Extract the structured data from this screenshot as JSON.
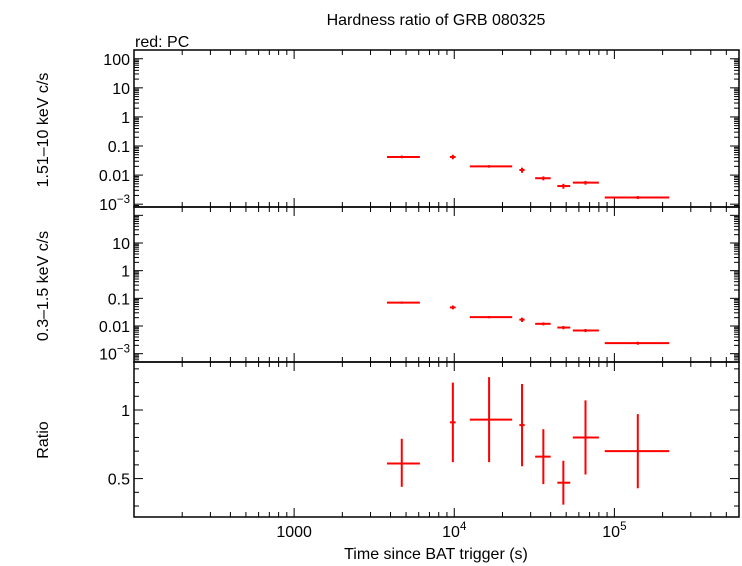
{
  "chart_data": {
    "type": "scatter",
    "title": "Hardness ratio of GRB 080325",
    "subtitle": "red: PC",
    "xlabel": "Time since BAT trigger (s)",
    "xscale": "log",
    "xlim": [
      100,
      600000
    ],
    "x_tick_labels": [
      {
        "value": 1000,
        "base": "1000",
        "exp": ""
      },
      {
        "value": 10000,
        "base": "10",
        "exp": "4"
      },
      {
        "value": 100000,
        "base": "10",
        "exp": "5"
      }
    ],
    "color": "#ff0000",
    "panels": [
      {
        "name": "hard",
        "ylabel": "1.51–10 keV c/s",
        "yscale": "log",
        "ylim": [
          0.0008,
          200
        ],
        "y_tick_labels": [
          {
            "value": 100,
            "base": "100",
            "exp": ""
          },
          {
            "value": 10,
            "base": "10",
            "exp": ""
          },
          {
            "value": 1,
            "base": "1",
            "exp": ""
          },
          {
            "value": 0.1,
            "base": "0.1",
            "exp": ""
          },
          {
            "value": 0.01,
            "base": "0.01",
            "exp": ""
          },
          {
            "value": 0.001,
            "base": "10",
            "exp": "−3"
          }
        ],
        "points": [
          {
            "x": 4700,
            "xlo": 3800,
            "xhi": 6100,
            "y": 0.042,
            "ylo": 0.038,
            "yhi": 0.047
          },
          {
            "x": 9800,
            "xlo": 9400,
            "xhi": 10200,
            "y": 0.042,
            "ylo": 0.035,
            "yhi": 0.05
          },
          {
            "x": 16500,
            "xlo": 12500,
            "xhi": 23000,
            "y": 0.02,
            "ylo": 0.018,
            "yhi": 0.022
          },
          {
            "x": 26500,
            "xlo": 25500,
            "xhi": 27500,
            "y": 0.015,
            "ylo": 0.012,
            "yhi": 0.018
          },
          {
            "x": 36000,
            "xlo": 32000,
            "xhi": 40000,
            "y": 0.0078,
            "ylo": 0.0066,
            "yhi": 0.009
          },
          {
            "x": 48000,
            "xlo": 44000,
            "xhi": 53000,
            "y": 0.0042,
            "ylo": 0.0034,
            "yhi": 0.005
          },
          {
            "x": 66000,
            "xlo": 55000,
            "xhi": 80000,
            "y": 0.0055,
            "ylo": 0.0047,
            "yhi": 0.0063
          },
          {
            "x": 140000,
            "xlo": 87000,
            "xhi": 220000,
            "y": 0.0017,
            "ylo": 0.0015,
            "yhi": 0.0019
          }
        ]
      },
      {
        "name": "soft",
        "ylabel": "0.3–1.5 keV c/s",
        "yscale": "log",
        "ylim": [
          0.0005,
          200
        ],
        "y_tick_labels": [
          {
            "value": 10,
            "base": "10",
            "exp": ""
          },
          {
            "value": 1,
            "base": "1",
            "exp": ""
          },
          {
            "value": 0.1,
            "base": "0.1",
            "exp": ""
          },
          {
            "value": 0.01,
            "base": "0.01",
            "exp": ""
          },
          {
            "value": 0.001,
            "base": "10",
            "exp": "−3"
          }
        ],
        "points": [
          {
            "x": 4700,
            "xlo": 3800,
            "xhi": 6100,
            "y": 0.07,
            "ylo": 0.064,
            "yhi": 0.077
          },
          {
            "x": 9800,
            "xlo": 9400,
            "xhi": 10200,
            "y": 0.047,
            "ylo": 0.04,
            "yhi": 0.055
          },
          {
            "x": 16500,
            "xlo": 12500,
            "xhi": 23000,
            "y": 0.021,
            "ylo": 0.019,
            "yhi": 0.023
          },
          {
            "x": 26500,
            "xlo": 25500,
            "xhi": 27500,
            "y": 0.017,
            "ylo": 0.014,
            "yhi": 0.02
          },
          {
            "x": 36000,
            "xlo": 32000,
            "xhi": 40000,
            "y": 0.012,
            "ylo": 0.0105,
            "yhi": 0.0135
          },
          {
            "x": 48000,
            "xlo": 44000,
            "xhi": 53000,
            "y": 0.0088,
            "ylo": 0.0076,
            "yhi": 0.01
          },
          {
            "x": 66000,
            "xlo": 55000,
            "xhi": 80000,
            "y": 0.0069,
            "ylo": 0.006,
            "yhi": 0.0078
          },
          {
            "x": 140000,
            "xlo": 87000,
            "xhi": 220000,
            "y": 0.0024,
            "ylo": 0.0021,
            "yhi": 0.0027
          }
        ]
      },
      {
        "name": "ratio",
        "ylabel": "Ratio",
        "yscale": "linear",
        "ylim": [
          0.22,
          1.35
        ],
        "y_tick_labels": [
          {
            "value": 1,
            "base": "1",
            "exp": ""
          },
          {
            "value": 0.5,
            "base": "0.5",
            "exp": ""
          }
        ],
        "points": [
          {
            "x": 4700,
            "xlo": 3800,
            "xhi": 6100,
            "y": 0.61,
            "ylo": 0.44,
            "yhi": 0.79
          },
          {
            "x": 9800,
            "xlo": 9400,
            "xhi": 10200,
            "y": 0.91,
            "ylo": 0.62,
            "yhi": 1.2
          },
          {
            "x": 16500,
            "xlo": 12500,
            "xhi": 23000,
            "y": 0.93,
            "ylo": 0.62,
            "yhi": 1.24
          },
          {
            "x": 26500,
            "xlo": 25500,
            "xhi": 27500,
            "y": 0.89,
            "ylo": 0.59,
            "yhi": 1.19
          },
          {
            "x": 36000,
            "xlo": 32000,
            "xhi": 40000,
            "y": 0.66,
            "ylo": 0.46,
            "yhi": 0.86
          },
          {
            "x": 48000,
            "xlo": 44000,
            "xhi": 53000,
            "y": 0.47,
            "ylo": 0.31,
            "yhi": 0.63
          },
          {
            "x": 66000,
            "xlo": 55000,
            "xhi": 80000,
            "y": 0.8,
            "ylo": 0.53,
            "yhi": 1.07
          },
          {
            "x": 140000,
            "xlo": 87000,
            "xhi": 220000,
            "y": 0.7,
            "ylo": 0.43,
            "yhi": 0.97
          }
        ]
      }
    ]
  }
}
